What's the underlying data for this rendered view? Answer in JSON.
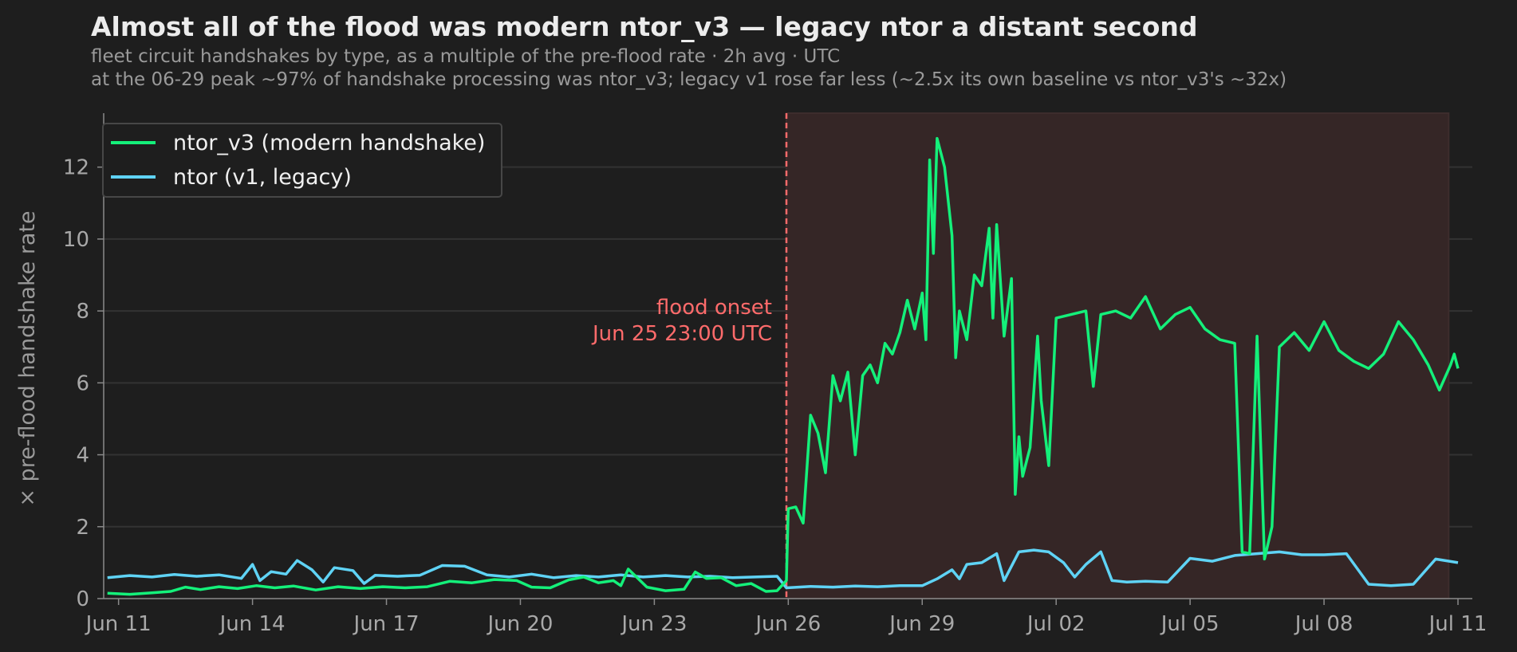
{
  "colors": {
    "background": "#1e1e1e",
    "ntor_v3": "#14f07a",
    "ntor_v1": "#5fd3f5",
    "onset": "#ff6b6b",
    "flood_shade": "#352626",
    "grid": "#333333"
  },
  "chart_data": {
    "type": "line",
    "title": "Almost all of the flood was modern ntor_v3 — legacy ntor a distant second",
    "subtitle_lines": [
      "fleet circuit handshakes by type, as a multiple of the pre-flood rate · 2h avg · UTC",
      "at the 06-29 peak ~97% of handshake processing was ntor_v3; legacy v1 rose far less (~2.5x its own baseline vs ntor_v3's ~32x)"
    ],
    "ylabel": "× pre-flood handshake rate",
    "xlabel": "",
    "ylim": [
      0,
      13.5
    ],
    "xlim": [
      "2025-06-10T16:00",
      "2025-07-11T00:00"
    ],
    "y_ticks": [
      0,
      2,
      4,
      6,
      8,
      10,
      12
    ],
    "x_ticks": [
      {
        "date": "2025-06-11T00:00",
        "label": "Jun 11"
      },
      {
        "date": "2025-06-14T00:00",
        "label": "Jun 14"
      },
      {
        "date": "2025-06-17T00:00",
        "label": "Jun 17"
      },
      {
        "date": "2025-06-20T00:00",
        "label": "Jun 20"
      },
      {
        "date": "2025-06-23T00:00",
        "label": "Jun 23"
      },
      {
        "date": "2025-06-26T00:00",
        "label": "Jun 26"
      },
      {
        "date": "2025-06-29T00:00",
        "label": "Jun 29"
      },
      {
        "date": "2025-07-02T00:00",
        "label": "Jul 02"
      },
      {
        "date": "2025-07-05T00:00",
        "label": "Jul 05"
      },
      {
        "date": "2025-07-08T00:00",
        "label": "Jul 08"
      },
      {
        "date": "2025-07-11T00:00",
        "label": "Jul 11"
      }
    ],
    "grid": "horizontal",
    "legend_position": "top-left",
    "shaded_region": {
      "from": "2025-06-25T23:00",
      "to": "2025-07-10T19:00"
    },
    "annotation": {
      "date": "2025-06-25T23:00",
      "lines": [
        "flood onset",
        "Jun 25 23:00 UTC"
      ]
    },
    "series": [
      {
        "name": "ntor_v3 (modern handshake)",
        "points": [
          [
            "2025-06-10T18:00",
            0.15
          ],
          [
            "2025-06-11T06:00",
            0.12
          ],
          [
            "2025-06-11T18:00",
            0.16
          ],
          [
            "2025-06-12T04:00",
            0.2
          ],
          [
            "2025-06-12T12:00",
            0.32
          ],
          [
            "2025-06-12T20:00",
            0.25
          ],
          [
            "2025-06-13T06:00",
            0.33
          ],
          [
            "2025-06-13T16:00",
            0.28
          ],
          [
            "2025-06-14T02:00",
            0.36
          ],
          [
            "2025-06-14T12:00",
            0.3
          ],
          [
            "2025-06-14T22:00",
            0.35
          ],
          [
            "2025-06-15T10:00",
            0.24
          ],
          [
            "2025-06-15T22:00",
            0.33
          ],
          [
            "2025-06-16T10:00",
            0.28
          ],
          [
            "2025-06-16T22:00",
            0.33
          ],
          [
            "2025-06-17T10:00",
            0.3
          ],
          [
            "2025-06-17T22:00",
            0.33
          ],
          [
            "2025-06-18T10:00",
            0.48
          ],
          [
            "2025-06-18T22:00",
            0.44
          ],
          [
            "2025-06-19T10:00",
            0.53
          ],
          [
            "2025-06-19T22:00",
            0.5
          ],
          [
            "2025-06-20T06:00",
            0.32
          ],
          [
            "2025-06-20T16:00",
            0.3
          ],
          [
            "2025-06-21T02:00",
            0.52
          ],
          [
            "2025-06-21T10:00",
            0.6
          ],
          [
            "2025-06-21T18:00",
            0.44
          ],
          [
            "2025-06-22T02:00",
            0.5
          ],
          [
            "2025-06-22T06:00",
            0.36
          ],
          [
            "2025-06-22T10:00",
            0.82
          ],
          [
            "2025-06-22T14:00",
            0.62
          ],
          [
            "2025-06-22T20:00",
            0.32
          ],
          [
            "2025-06-23T06:00",
            0.22
          ],
          [
            "2025-06-23T16:00",
            0.26
          ],
          [
            "2025-06-23T22:00",
            0.74
          ],
          [
            "2025-06-24T04:00",
            0.56
          ],
          [
            "2025-06-24T12:00",
            0.58
          ],
          [
            "2025-06-24T20:00",
            0.36
          ],
          [
            "2025-06-25T04:00",
            0.42
          ],
          [
            "2025-06-25T12:00",
            0.2
          ],
          [
            "2025-06-25T18:00",
            0.22
          ],
          [
            "2025-06-25T23:00",
            0.5
          ],
          [
            "2025-06-26T00:00",
            2.5
          ],
          [
            "2025-06-26T04:00",
            2.55
          ],
          [
            "2025-06-26T08:00",
            2.1
          ],
          [
            "2025-06-26T12:00",
            5.1
          ],
          [
            "2025-06-26T16:00",
            4.6
          ],
          [
            "2025-06-26T20:00",
            3.5
          ],
          [
            "2025-06-27T00:00",
            6.2
          ],
          [
            "2025-06-27T04:00",
            5.5
          ],
          [
            "2025-06-27T08:00",
            6.3
          ],
          [
            "2025-06-27T12:00",
            4.0
          ],
          [
            "2025-06-27T16:00",
            6.2
          ],
          [
            "2025-06-27T20:00",
            6.5
          ],
          [
            "2025-06-28T00:00",
            6.0
          ],
          [
            "2025-06-28T04:00",
            7.1
          ],
          [
            "2025-06-28T08:00",
            6.8
          ],
          [
            "2025-06-28T12:00",
            7.4
          ],
          [
            "2025-06-28T16:00",
            8.3
          ],
          [
            "2025-06-28T20:00",
            7.5
          ],
          [
            "2025-06-29T00:00",
            8.5
          ],
          [
            "2025-06-29T02:00",
            7.2
          ],
          [
            "2025-06-29T04:00",
            12.2
          ],
          [
            "2025-06-29T06:00",
            9.6
          ],
          [
            "2025-06-29T08:00",
            12.8
          ],
          [
            "2025-06-29T12:00",
            12.0
          ],
          [
            "2025-06-29T16:00",
            10.1
          ],
          [
            "2025-06-29T18:00",
            6.7
          ],
          [
            "2025-06-29T20:00",
            8.0
          ],
          [
            "2025-06-30T00:00",
            7.2
          ],
          [
            "2025-06-30T04:00",
            9.0
          ],
          [
            "2025-06-30T08:00",
            8.7
          ],
          [
            "2025-06-30T12:00",
            10.3
          ],
          [
            "2025-06-30T14:00",
            7.8
          ],
          [
            "2025-06-30T16:00",
            10.4
          ],
          [
            "2025-06-30T20:00",
            7.3
          ],
          [
            "2025-07-01T00:00",
            8.9
          ],
          [
            "2025-07-01T02:00",
            2.9
          ],
          [
            "2025-07-01T04:00",
            4.5
          ],
          [
            "2025-07-01T06:00",
            3.4
          ],
          [
            "2025-07-01T10:00",
            4.2
          ],
          [
            "2025-07-01T14:00",
            7.3
          ],
          [
            "2025-07-01T16:00",
            5.5
          ],
          [
            "2025-07-01T20:00",
            3.7
          ],
          [
            "2025-07-02T00:00",
            7.8
          ],
          [
            "2025-07-02T08:00",
            7.9
          ],
          [
            "2025-07-02T16:00",
            8.0
          ],
          [
            "2025-07-02T20:00",
            5.9
          ],
          [
            "2025-07-03T00:00",
            7.9
          ],
          [
            "2025-07-03T08:00",
            8.0
          ],
          [
            "2025-07-03T16:00",
            7.8
          ],
          [
            "2025-07-04T00:00",
            8.4
          ],
          [
            "2025-07-04T08:00",
            7.5
          ],
          [
            "2025-07-04T16:00",
            7.9
          ],
          [
            "2025-07-05T00:00",
            8.1
          ],
          [
            "2025-07-05T08:00",
            7.5
          ],
          [
            "2025-07-05T16:00",
            7.2
          ],
          [
            "2025-07-06T00:00",
            7.1
          ],
          [
            "2025-07-06T04:00",
            1.3
          ],
          [
            "2025-07-06T08:00",
            1.25
          ],
          [
            "2025-07-06T12:00",
            7.3
          ],
          [
            "2025-07-06T16:00",
            1.1
          ],
          [
            "2025-07-06T20:00",
            2.0
          ],
          [
            "2025-07-07T00:00",
            7.0
          ],
          [
            "2025-07-07T08:00",
            7.4
          ],
          [
            "2025-07-07T16:00",
            6.9
          ],
          [
            "2025-07-08T00:00",
            7.7
          ],
          [
            "2025-07-08T08:00",
            6.9
          ],
          [
            "2025-07-08T16:00",
            6.6
          ],
          [
            "2025-07-09T00:00",
            6.4
          ],
          [
            "2025-07-09T08:00",
            6.8
          ],
          [
            "2025-07-09T16:00",
            7.7
          ],
          [
            "2025-07-10T00:00",
            7.2
          ],
          [
            "2025-07-10T08:00",
            6.5
          ],
          [
            "2025-07-10T14:00",
            5.8
          ],
          [
            "2025-07-10T20:00",
            6.5
          ],
          [
            "2025-07-10T22:00",
            6.8
          ],
          [
            "2025-07-11T00:00",
            6.4
          ]
        ]
      },
      {
        "name": "ntor (v1, legacy)",
        "points": [
          [
            "2025-06-10T18:00",
            0.58
          ],
          [
            "2025-06-11T06:00",
            0.64
          ],
          [
            "2025-06-11T18:00",
            0.6
          ],
          [
            "2025-06-12T06:00",
            0.67
          ],
          [
            "2025-06-12T18:00",
            0.62
          ],
          [
            "2025-06-13T06:00",
            0.66
          ],
          [
            "2025-06-13T18:00",
            0.56
          ],
          [
            "2025-06-14T00:00",
            0.95
          ],
          [
            "2025-06-14T04:00",
            0.5
          ],
          [
            "2025-06-14T10:00",
            0.75
          ],
          [
            "2025-06-14T18:00",
            0.68
          ],
          [
            "2025-06-15T00:00",
            1.06
          ],
          [
            "2025-06-15T08:00",
            0.8
          ],
          [
            "2025-06-15T14:00",
            0.46
          ],
          [
            "2025-06-15T20:00",
            0.86
          ],
          [
            "2025-06-16T06:00",
            0.78
          ],
          [
            "2025-06-16T12:00",
            0.42
          ],
          [
            "2025-06-16T18:00",
            0.65
          ],
          [
            "2025-06-17T06:00",
            0.62
          ],
          [
            "2025-06-17T18:00",
            0.65
          ],
          [
            "2025-06-18T06:00",
            0.92
          ],
          [
            "2025-06-18T18:00",
            0.9
          ],
          [
            "2025-06-19T06:00",
            0.66
          ],
          [
            "2025-06-19T18:00",
            0.6
          ],
          [
            "2025-06-20T06:00",
            0.68
          ],
          [
            "2025-06-20T18:00",
            0.58
          ],
          [
            "2025-06-21T06:00",
            0.64
          ],
          [
            "2025-06-21T18:00",
            0.6
          ],
          [
            "2025-06-22T06:00",
            0.66
          ],
          [
            "2025-06-22T18:00",
            0.6
          ],
          [
            "2025-06-23T06:00",
            0.64
          ],
          [
            "2025-06-23T18:00",
            0.6
          ],
          [
            "2025-06-24T06:00",
            0.62
          ],
          [
            "2025-06-24T18:00",
            0.58
          ],
          [
            "2025-06-25T06:00",
            0.6
          ],
          [
            "2025-06-25T18:00",
            0.62
          ],
          [
            "2025-06-25T23:00",
            0.3
          ],
          [
            "2025-06-26T12:00",
            0.34
          ],
          [
            "2025-06-27T00:00",
            0.32
          ],
          [
            "2025-06-27T12:00",
            0.35
          ],
          [
            "2025-06-28T00:00",
            0.33
          ],
          [
            "2025-06-28T12:00",
            0.36
          ],
          [
            "2025-06-29T00:00",
            0.36
          ],
          [
            "2025-06-29T08:00",
            0.55
          ],
          [
            "2025-06-29T16:00",
            0.8
          ],
          [
            "2025-06-29T20:00",
            0.55
          ],
          [
            "2025-06-30T00:00",
            0.95
          ],
          [
            "2025-06-30T08:00",
            1.0
          ],
          [
            "2025-06-30T16:00",
            1.25
          ],
          [
            "2025-06-30T20:00",
            0.5
          ],
          [
            "2025-07-01T04:00",
            1.3
          ],
          [
            "2025-07-01T12:00",
            1.35
          ],
          [
            "2025-07-01T20:00",
            1.3
          ],
          [
            "2025-07-02T04:00",
            1.0
          ],
          [
            "2025-07-02T10:00",
            0.6
          ],
          [
            "2025-07-02T16:00",
            0.95
          ],
          [
            "2025-07-03T00:00",
            1.3
          ],
          [
            "2025-07-03T06:00",
            0.5
          ],
          [
            "2025-07-03T14:00",
            0.46
          ],
          [
            "2025-07-04T00:00",
            0.48
          ],
          [
            "2025-07-04T12:00",
            0.46
          ],
          [
            "2025-07-05T00:00",
            1.12
          ],
          [
            "2025-07-05T12:00",
            1.04
          ],
          [
            "2025-07-06T00:00",
            1.2
          ],
          [
            "2025-07-06T12:00",
            1.25
          ],
          [
            "2025-07-07T00:00",
            1.3
          ],
          [
            "2025-07-07T12:00",
            1.22
          ],
          [
            "2025-07-08T00:00",
            1.22
          ],
          [
            "2025-07-08T12:00",
            1.25
          ],
          [
            "2025-07-09T00:00",
            0.4
          ],
          [
            "2025-07-09T12:00",
            0.36
          ],
          [
            "2025-07-10T00:00",
            0.4
          ],
          [
            "2025-07-10T12:00",
            1.1
          ],
          [
            "2025-07-11T00:00",
            1.0
          ]
        ]
      }
    ]
  }
}
